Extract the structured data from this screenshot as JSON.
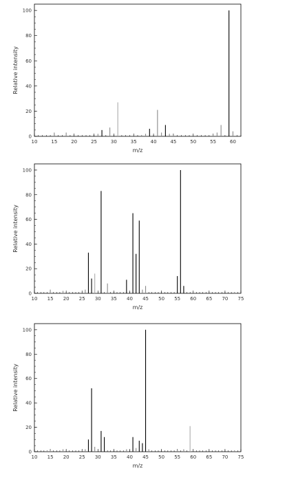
{
  "chart_data": [
    {
      "type": "bar",
      "xlabel": "m/z",
      "ylabel": "Relative intensity",
      "xlim": [
        10,
        62
      ],
      "ylim": [
        0,
        105
      ],
      "xticks": [
        10,
        15,
        20,
        25,
        30,
        35,
        40,
        45,
        50,
        55,
        60
      ],
      "yticks": [
        0,
        20,
        40,
        60,
        80,
        100
      ],
      "grid": false,
      "peaks": [
        {
          "x": 15,
          "y": 3,
          "color": "#888888"
        },
        {
          "x": 18,
          "y": 3,
          "color": "#888888"
        },
        {
          "x": 26,
          "y": 2,
          "color": "#888888"
        },
        {
          "x": 27,
          "y": 5,
          "color": "#000000"
        },
        {
          "x": 29,
          "y": 7,
          "color": "#888888"
        },
        {
          "x": 31,
          "y": 27,
          "color": "#aaaaaa"
        },
        {
          "x": 37,
          "y": 1,
          "color": "#888888"
        },
        {
          "x": 38,
          "y": 2,
          "color": "#888888"
        },
        {
          "x": 39,
          "y": 6,
          "color": "#000000"
        },
        {
          "x": 41,
          "y": 21,
          "color": "#888888"
        },
        {
          "x": 42,
          "y": 3,
          "color": "#888888"
        },
        {
          "x": 43,
          "y": 9,
          "color": "#000000"
        },
        {
          "x": 44,
          "y": 2,
          "color": "#888888"
        },
        {
          "x": 45,
          "y": 1,
          "color": "#888888"
        },
        {
          "x": 55,
          "y": 2,
          "color": "#888888"
        },
        {
          "x": 56,
          "y": 3,
          "color": "#888888"
        },
        {
          "x": 57,
          "y": 9,
          "color": "#888888"
        },
        {
          "x": 59,
          "y": 100,
          "color": "#000000"
        },
        {
          "x": 60,
          "y": 4,
          "color": "#888888"
        }
      ]
    },
    {
      "type": "bar",
      "xlabel": "m/z",
      "ylabel": "Relative intensity",
      "xlim": [
        10,
        75
      ],
      "ylim": [
        0,
        105
      ],
      "xticks": [
        10,
        15,
        20,
        25,
        30,
        35,
        40,
        45,
        50,
        55,
        60,
        65,
        70,
        75
      ],
      "yticks": [
        0,
        20,
        40,
        60,
        80,
        100
      ],
      "grid": false,
      "peaks": [
        {
          "x": 15,
          "y": 3,
          "color": "#888888"
        },
        {
          "x": 19,
          "y": 2,
          "color": "#888888"
        },
        {
          "x": 26,
          "y": 3,
          "color": "#888888"
        },
        {
          "x": 27,
          "y": 33,
          "color": "#000000"
        },
        {
          "x": 28,
          "y": 12,
          "color": "#000000"
        },
        {
          "x": 29,
          "y": 16,
          "color": "#aaaaaa"
        },
        {
          "x": 31,
          "y": 83,
          "color": "#000000"
        },
        {
          "x": 33,
          "y": 8,
          "color": "#888888"
        },
        {
          "x": 39,
          "y": 11,
          "color": "#000000"
        },
        {
          "x": 41,
          "y": 65,
          "color": "#000000"
        },
        {
          "x": 42,
          "y": 32,
          "color": "#000000"
        },
        {
          "x": 43,
          "y": 59,
          "color": "#000000"
        },
        {
          "x": 44,
          "y": 3,
          "color": "#888888"
        },
        {
          "x": 45,
          "y": 6,
          "color": "#888888"
        },
        {
          "x": 55,
          "y": 14,
          "color": "#000000"
        },
        {
          "x": 56,
          "y": 100,
          "color": "#000000"
        },
        {
          "x": 57,
          "y": 6,
          "color": "#000000"
        },
        {
          "x": 73,
          "y": 1,
          "color": "#888888"
        }
      ]
    },
    {
      "type": "bar",
      "xlabel": "m/z",
      "ylabel": "Relative intensity",
      "xlim": [
        10,
        75
      ],
      "ylim": [
        0,
        105
      ],
      "xticks": [
        10,
        15,
        20,
        25,
        30,
        35,
        40,
        45,
        50,
        55,
        60,
        65,
        70,
        75
      ],
      "yticks": [
        0,
        20,
        40,
        60,
        80,
        100
      ],
      "grid": false,
      "peaks": [
        {
          "x": 14,
          "y": 1,
          "color": "#888888"
        },
        {
          "x": 15,
          "y": 2,
          "color": "#888888"
        },
        {
          "x": 19,
          "y": 2,
          "color": "#888888"
        },
        {
          "x": 26,
          "y": 2,
          "color": "#888888"
        },
        {
          "x": 27,
          "y": 10,
          "color": "#000000"
        },
        {
          "x": 28,
          "y": 52,
          "color": "#000000"
        },
        {
          "x": 29,
          "y": 4,
          "color": "#888888"
        },
        {
          "x": 31,
          "y": 17,
          "color": "#000000"
        },
        {
          "x": 32,
          "y": 12,
          "color": "#000000"
        },
        {
          "x": 39,
          "y": 2,
          "color": "#888888"
        },
        {
          "x": 41,
          "y": 12,
          "color": "#000000"
        },
        {
          "x": 42,
          "y": 3,
          "color": "#888888"
        },
        {
          "x": 43,
          "y": 9,
          "color": "#000000"
        },
        {
          "x": 44,
          "y": 7,
          "color": "#000000"
        },
        {
          "x": 45,
          "y": 100,
          "color": "#000000"
        },
        {
          "x": 46,
          "y": 2,
          "color": "#888888"
        },
        {
          "x": 55,
          "y": 2,
          "color": "#888888"
        },
        {
          "x": 57,
          "y": 2,
          "color": "#888888"
        },
        {
          "x": 59,
          "y": 21,
          "color": "#aaaaaa"
        },
        {
          "x": 73,
          "y": 1,
          "color": "#888888"
        }
      ]
    }
  ]
}
